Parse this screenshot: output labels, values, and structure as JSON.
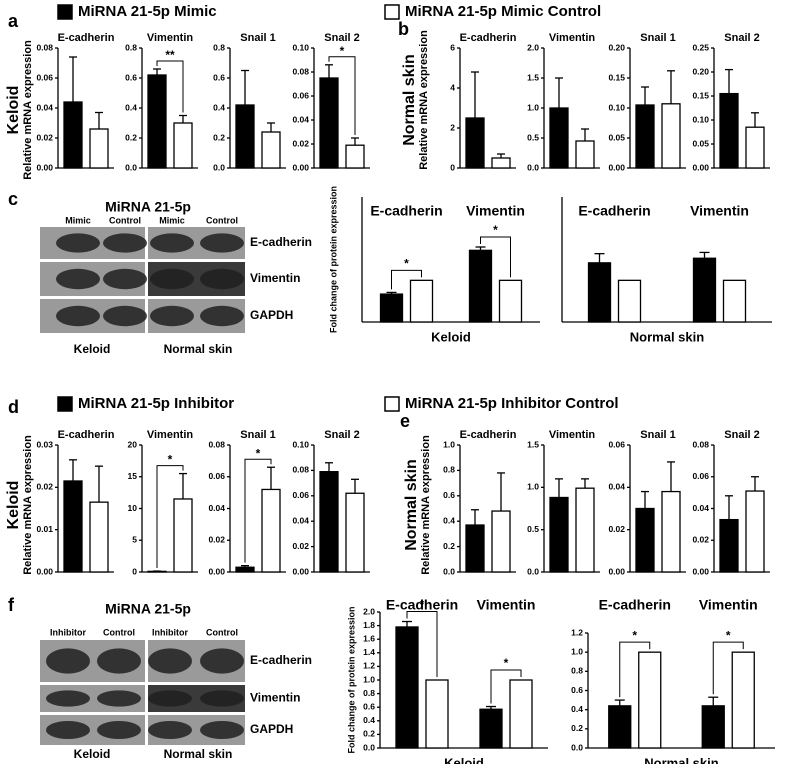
{
  "legends": [
    {
      "text": "MiRNA 21-5p Mimic",
      "color": "#000000"
    },
    {
      "text": "MiRNA 21-5p Mimic Control",
      "color": "#ffffff"
    },
    {
      "text": "MiRNA 21-5p Inhibitor",
      "color": "#000000"
    },
    {
      "text": "MiRNA 21-5p Inhibitor Control",
      "color": "#ffffff"
    }
  ],
  "panel_labels": [
    "a",
    "b",
    "c",
    "d",
    "e",
    "f"
  ],
  "row_labels": [
    {
      "title": "Keloid",
      "ylabel": "Relative mRNA expression"
    },
    {
      "title": "Normal skin",
      "ylabel": "Relative mRNA expression"
    },
    {
      "title": "Keloid",
      "ylabel": "Relative mRNA expression"
    },
    {
      "title": "Normal skin",
      "ylabel": "Relative mRNA expression"
    }
  ],
  "blots": [
    {
      "title": "MiRNA 21-5p",
      "lanes": [
        "Mimic",
        "Control",
        "Mimic",
        "Control"
      ],
      "proteins": [
        "E-cadherin",
        "Vimentin",
        "GAPDH"
      ],
      "groups": [
        "Keloid",
        "Normal skin"
      ]
    },
    {
      "title": "MiRNA 21-5p",
      "lanes": [
        "Inhibitor",
        "Control",
        "Inhibitor",
        "Control"
      ],
      "proteins": [
        "E-cadherin",
        "Vimentin",
        "GAPDH"
      ],
      "groups": [
        "Keloid",
        "Normal skin"
      ]
    }
  ],
  "chart_data": [
    {
      "type": "bar",
      "title": "E-cadherin",
      "values": [
        0.044,
        0.026
      ],
      "errors": [
        0.03,
        0.011
      ],
      "colors": [
        "#000000",
        "#ffffff"
      ],
      "ylim": [
        0,
        0.08
      ],
      "yticks": [
        {
          "value": 0,
          "label": "0.00"
        },
        0.02,
        0.04,
        0.06,
        0.08
      ]
    },
    {
      "type": "bar",
      "title": "Vimentin",
      "values": [
        0.62,
        0.3
      ],
      "errors": [
        0.04,
        0.05
      ],
      "colors": [
        "#000000",
        "#ffffff"
      ],
      "ylim": [
        0,
        0.8
      ],
      "yticks": [
        {
          "value": 0,
          "label": "0.0"
        },
        0.2,
        0.4,
        0.6,
        0.8
      ],
      "annotation": "**"
    },
    {
      "type": "bar",
      "title": "Snail 1",
      "values": [
        0.42,
        0.24
      ],
      "errors": [
        0.23,
        0.06
      ],
      "colors": [
        "#000000",
        "#ffffff"
      ],
      "ylim": [
        0,
        0.8
      ],
      "yticks": [
        {
          "value": 0,
          "label": "0.0"
        },
        0.2,
        0.4,
        0.6,
        0.8
      ]
    },
    {
      "type": "bar",
      "title": "Snail 2",
      "values": [
        0.075,
        0.019
      ],
      "errors": [
        0.011,
        0.006
      ],
      "colors": [
        "#000000",
        "#ffffff"
      ],
      "ylim": [
        0,
        0.1
      ],
      "yticks": [
        {
          "value": 0,
          "label": "0.00"
        },
        0.02,
        0.04,
        0.06,
        0.08,
        {
          "value": 0.1,
          "label": "0.10"
        }
      ],
      "annotation": "*"
    },
    {
      "type": "bar",
      "title": "E-cadherin",
      "values": [
        2.5,
        0.5
      ],
      "errors": [
        2.3,
        0.2
      ],
      "colors": [
        "#000000",
        "#ffffff"
      ],
      "ylim": [
        0,
        6
      ],
      "yticks": [
        0,
        2,
        4,
        6
      ]
    },
    {
      "type": "bar",
      "title": "Vimentin",
      "values": [
        1.0,
        0.45
      ],
      "errors": [
        0.5,
        0.2
      ],
      "colors": [
        "#000000",
        "#ffffff"
      ],
      "ylim": [
        0,
        2
      ],
      "yticks": [
        {
          "value": 0,
          "label": "0.0"
        },
        0.5,
        {
          "value": 1,
          "label": "1.0"
        },
        1.5,
        {
          "value": 2,
          "label": "2.0"
        }
      ]
    },
    {
      "type": "bar",
      "title": "Snail 1",
      "values": [
        0.105,
        0.107
      ],
      "errors": [
        0.03,
        0.055
      ],
      "colors": [
        "#000000",
        "#ffffff"
      ],
      "ylim": [
        0,
        0.2
      ],
      "yticks": [
        {
          "value": 0,
          "label": "0.00"
        },
        0.05,
        {
          "value": 0.1,
          "label": "0.10"
        },
        0.15,
        {
          "value": 0.2,
          "label": "0.20"
        }
      ]
    },
    {
      "type": "bar",
      "title": "Snail 2",
      "values": [
        0.155,
        0.085
      ],
      "errors": [
        0.05,
        0.03
      ],
      "colors": [
        "#000000",
        "#ffffff"
      ],
      "ylim": [
        0,
        0.25
      ],
      "yticks": [
        {
          "value": 0,
          "label": "0.00"
        },
        0.05,
        {
          "value": 0.1,
          "label": "0.10"
        },
        0.15,
        {
          "value": 0.2,
          "label": "0.20"
        },
        0.25
      ]
    },
    {
      "type": "bar",
      "title": "E-cadherin",
      "values": [
        0.0215,
        0.0165
      ],
      "errors": [
        0.005,
        0.0085
      ],
      "colors": [
        "#000000",
        "#ffffff"
      ],
      "ylim": [
        0,
        0.03
      ],
      "yticks": [
        {
          "value": 0,
          "label": "0.00"
        },
        0.01,
        0.02,
        0.03
      ]
    },
    {
      "type": "bar",
      "title": "Vimentin",
      "values": [
        0.1,
        11.5
      ],
      "errors": [
        0.05,
        4
      ],
      "colors": [
        "#000000",
        "#ffffff"
      ],
      "ylim": [
        0,
        20
      ],
      "yticks": [
        0,
        5,
        10,
        15,
        20
      ],
      "annotation": "*"
    },
    {
      "type": "bar",
      "title": "Snail 1",
      "values": [
        0.003,
        0.052
      ],
      "errors": [
        0.001,
        0.014
      ],
      "colors": [
        "#000000",
        "#ffffff"
      ],
      "ylim": [
        0,
        0.08
      ],
      "yticks": [
        {
          "value": 0,
          "label": "0.00"
        },
        0.02,
        0.04,
        0.06,
        0.08
      ],
      "annotation": "*"
    },
    {
      "type": "bar",
      "title": "Snail 2",
      "values": [
        0.079,
        0.062
      ],
      "errors": [
        0.007,
        0.011
      ],
      "colors": [
        "#000000",
        "#ffffff"
      ],
      "ylim": [
        0,
        0.1
      ],
      "yticks": [
        {
          "value": 0,
          "label": "0.00"
        },
        0.02,
        0.04,
        0.06,
        0.08,
        {
          "value": 0.1,
          "label": "0.10"
        }
      ]
    },
    {
      "type": "bar",
      "title": "E-cadherin",
      "values": [
        0.37,
        0.48
      ],
      "errors": [
        0.12,
        0.3
      ],
      "colors": [
        "#000000",
        "#ffffff"
      ],
      "ylim": [
        0,
        1
      ],
      "yticks": [
        {
          "value": 0,
          "label": "0.0"
        },
        0.2,
        0.4,
        0.6,
        0.8,
        {
          "value": 1,
          "label": "1.0"
        }
      ]
    },
    {
      "type": "bar",
      "title": "Vimentin",
      "values": [
        0.88,
        0.99
      ],
      "errors": [
        0.22,
        0.11
      ],
      "colors": [
        "#000000",
        "#ffffff"
      ],
      "ylim": [
        0,
        1.5
      ],
      "yticks": [
        {
          "value": 0,
          "label": "0.0"
        },
        0.5,
        {
          "value": 1,
          "label": "1.0"
        },
        1.5
      ]
    },
    {
      "type": "bar",
      "title": "Snail 1",
      "values": [
        0.03,
        0.038
      ],
      "errors": [
        0.008,
        0.014
      ],
      "colors": [
        "#000000",
        "#ffffff"
      ],
      "ylim": [
        0,
        0.06
      ],
      "yticks": [
        {
          "value": 0,
          "label": "0.00"
        },
        0.02,
        0.04,
        0.06
      ]
    },
    {
      "type": "bar",
      "title": "Snail 2",
      "values": [
        0.033,
        0.051
      ],
      "errors": [
        0.015,
        0.009
      ],
      "colors": [
        "#000000",
        "#ffffff"
      ],
      "ylim": [
        0,
        0.08
      ],
      "yticks": [
        {
          "value": 0,
          "label": "0.00"
        },
        0.02,
        0.04,
        0.06,
        0.08
      ]
    },
    {
      "type": "grouped_bar",
      "categories": [
        "E-cadherin",
        "Vimentin"
      ],
      "series": [
        {
          "color": "#000000",
          "values": [
            0.67,
            1.72
          ],
          "errors": [
            0.04,
            0.08
          ]
        },
        {
          "color": "#ffffff",
          "values": [
            1,
            1
          ]
        }
      ],
      "annotations": [
        "*",
        "*"
      ],
      "xlabel": "Keloid",
      "ylabel": "Fold change of protein expression",
      "ylim": [
        0,
        3
      ]
    },
    {
      "type": "grouped_bar",
      "categories": [
        "E-cadherin",
        "Vimentin"
      ],
      "series": [
        {
          "color": "#000000",
          "values": [
            1.42,
            1.53
          ],
          "errors": [
            0.22,
            0.14
          ]
        },
        {
          "color": "#ffffff",
          "values": [
            1,
            1
          ]
        }
      ],
      "xlabel": "Normal skin",
      "ylim": [
        0,
        3
      ]
    },
    {
      "type": "grouped_bar",
      "categories": [
        "E-cadherin",
        "Vimentin"
      ],
      "series": [
        {
          "color": "#000000",
          "values": [
            1.78,
            0.57
          ],
          "errors": [
            0.08,
            0.04
          ]
        },
        {
          "color": "#ffffff",
          "values": [
            1,
            1
          ]
        }
      ],
      "annotations": [
        "*",
        "*"
      ],
      "xlabel": "Keloid",
      "ylabel": "Fold change of protein expression",
      "ylim": [
        0,
        2
      ],
      "yticks": [
        {
          "value": 0,
          "label": "0.0"
        },
        0.2,
        0.4,
        0.6,
        0.8,
        {
          "value": 1,
          "label": "1.0"
        },
        1.2,
        1.4,
        1.6,
        1.8,
        {
          "value": 2,
          "label": "2.0"
        }
      ]
    },
    {
      "type": "grouped_bar",
      "categories": [
        "E-cadherin",
        "Vimentin"
      ],
      "series": [
        {
          "color": "#000000",
          "values": [
            0.44,
            0.44
          ],
          "errors": [
            0.06,
            0.09
          ]
        },
        {
          "color": "#ffffff",
          "values": [
            1,
            1
          ]
        }
      ],
      "annotations": [
        "*",
        "*"
      ],
      "xlabel": "Normal skin",
      "ylim": [
        0,
        1.2
      ],
      "yticks": [
        {
          "value": 0,
          "label": "0.0"
        },
        0.2,
        0.4,
        0.6,
        0.8,
        {
          "value": 1,
          "label": "1.0"
        },
        1.2
      ]
    }
  ]
}
